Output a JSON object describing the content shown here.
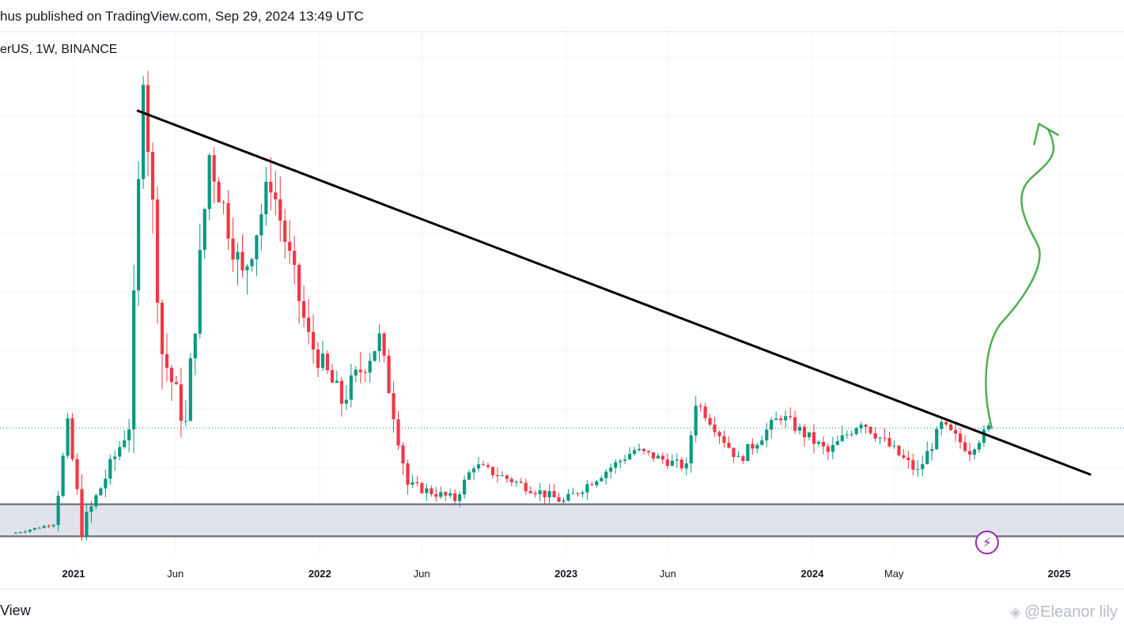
{
  "header": {
    "published_text": "hus published on TradingView.com, Sep 29, 2024 13:49 UTC",
    "symbol_text": "erUS, 1W, BINANCE"
  },
  "footer": {
    "brand_text": "View",
    "watermark_text": "@Eleanor lily",
    "watermark_icon": "diamond-logo-icon"
  },
  "event_marker": {
    "icon": "lightning-icon",
    "color": "#9c27b0"
  },
  "colors": {
    "up": "#089981",
    "down": "#f23645",
    "trendline": "#000000",
    "support_zone": "#e0e3eb",
    "support_border": "#787b86",
    "arrow": "#4caf50",
    "grid": "#f0f3fa"
  },
  "chart_data": {
    "type": "candlestick",
    "timeframe": "1W",
    "x_ticks": [
      {
        "label": "2021",
        "date": "2021-01-01",
        "bold": true
      },
      {
        "label": "Jun",
        "date": "2021-06-01",
        "bold": false
      },
      {
        "label": "2022",
        "date": "2022-01-01",
        "bold": true
      },
      {
        "label": "Jun",
        "date": "2022-06-01",
        "bold": false
      },
      {
        "label": "2023",
        "date": "2023-01-01",
        "bold": true
      },
      {
        "label": "Jun",
        "date": "2023-06-01",
        "bold": false
      },
      {
        "label": "2024",
        "date": "2024-01-01",
        "bold": true
      },
      {
        "label": "May",
        "date": "2024-05-01",
        "bold": false
      },
      {
        "label": "2025",
        "date": "2025-01-01",
        "bold": true
      }
    ],
    "candles_segments": [
      {
        "start": "2020-10-05",
        "end": "2020-12-07",
        "p0": 0.6,
        "p1": 1.0,
        "vol": 0.05
      },
      {
        "start": "2020-12-07",
        "end": "2020-12-28",
        "p0": 1.0,
        "p1": 5.0,
        "vol": 0.3
      },
      {
        "start": "2020-12-28",
        "end": "2021-01-18",
        "p0": 5.0,
        "p1": 0.8,
        "vol": 0.4
      },
      {
        "start": "2021-01-18",
        "end": "2021-03-29",
        "p0": 0.8,
        "p1": 5.0,
        "vol": 0.35
      },
      {
        "start": "2021-03-29",
        "end": "2021-04-19",
        "p0": 5.0,
        "p1": 19.5,
        "vol": 0.7
      },
      {
        "start": "2021-04-19",
        "end": "2021-05-17",
        "p0": 19.5,
        "p1": 8.0,
        "vol": 0.9
      },
      {
        "start": "2021-05-17",
        "end": "2021-06-21",
        "p0": 8.0,
        "p1": 5.0,
        "vol": 0.6
      },
      {
        "start": "2021-06-21",
        "end": "2021-07-26",
        "p0": 5.0,
        "p1": 16.0,
        "vol": 0.8
      },
      {
        "start": "2021-07-26",
        "end": "2021-09-13",
        "p0": 16.0,
        "p1": 11.0,
        "vol": 0.7
      },
      {
        "start": "2021-09-13",
        "end": "2021-10-25",
        "p0": 11.0,
        "p1": 15.0,
        "vol": 0.7
      },
      {
        "start": "2021-10-25",
        "end": "2021-12-20",
        "p0": 15.0,
        "p1": 8.5,
        "vol": 0.6
      },
      {
        "start": "2021-12-20",
        "end": "2022-02-07",
        "p0": 8.5,
        "p1": 6.0,
        "vol": 0.5
      },
      {
        "start": "2022-02-07",
        "end": "2022-04-04",
        "p0": 6.0,
        "p1": 8.5,
        "vol": 0.5
      },
      {
        "start": "2022-04-04",
        "end": "2022-05-16",
        "p0": 8.5,
        "p1": 2.6,
        "vol": 0.4
      },
      {
        "start": "2022-05-16",
        "end": "2022-07-25",
        "p0": 2.6,
        "p1": 2.0,
        "vol": 0.2
      },
      {
        "start": "2022-07-25",
        "end": "2022-08-22",
        "p0": 2.0,
        "p1": 3.4,
        "vol": 0.2
      },
      {
        "start": "2022-08-22",
        "end": "2023-01-02",
        "p0": 3.4,
        "p1": 1.9,
        "vol": 0.2
      },
      {
        "start": "2023-01-02",
        "end": "2023-04-17",
        "p0": 1.9,
        "p1": 4.0,
        "vol": 0.2
      },
      {
        "start": "2023-04-17",
        "end": "2023-07-03",
        "p0": 4.0,
        "p1": 3.3,
        "vol": 0.2
      },
      {
        "start": "2023-07-03",
        "end": "2023-07-17",
        "p0": 3.3,
        "p1": 6.0,
        "vol": 0.3
      },
      {
        "start": "2023-07-17",
        "end": "2023-09-18",
        "p0": 6.0,
        "p1": 3.6,
        "vol": 0.2
      },
      {
        "start": "2023-09-18",
        "end": "2023-11-20",
        "p0": 3.6,
        "p1": 5.4,
        "vol": 0.25
      },
      {
        "start": "2023-11-20",
        "end": "2024-01-29",
        "p0": 5.4,
        "p1": 3.9,
        "vol": 0.25
      },
      {
        "start": "2024-01-29",
        "end": "2024-03-18",
        "p0": 3.9,
        "p1": 5.2,
        "vol": 0.25
      },
      {
        "start": "2024-03-18",
        "end": "2024-06-10",
        "p0": 5.2,
        "p1": 3.1,
        "vol": 0.25
      },
      {
        "start": "2024-06-10",
        "end": "2024-07-15",
        "p0": 3.1,
        "p1": 5.0,
        "vol": 0.25
      },
      {
        "start": "2024-07-15",
        "end": "2024-08-26",
        "p0": 5.0,
        "p1": 4.0,
        "vol": 0.25
      },
      {
        "start": "2024-08-26",
        "end": "2024-09-23",
        "p0": 4.0,
        "p1": 4.9,
        "vol": 0.2
      }
    ],
    "last_price": 4.9,
    "trendline": {
      "from": {
        "date": "2021-04-05",
        "price": 17.8
      },
      "to": {
        "date": "2025-02-17",
        "price": 3.0
      }
    },
    "support_zone": {
      "low": 0.5,
      "high": 1.8
    },
    "projection_arrow": {
      "from_date": "2024-09-23",
      "to_date": "2024-12-16",
      "target_price": 17.0
    },
    "x_range": [
      "2020-09-14",
      "2025-04-07"
    ],
    "y_range": [
      -0.2,
      21.0
    ],
    "grid": true
  }
}
